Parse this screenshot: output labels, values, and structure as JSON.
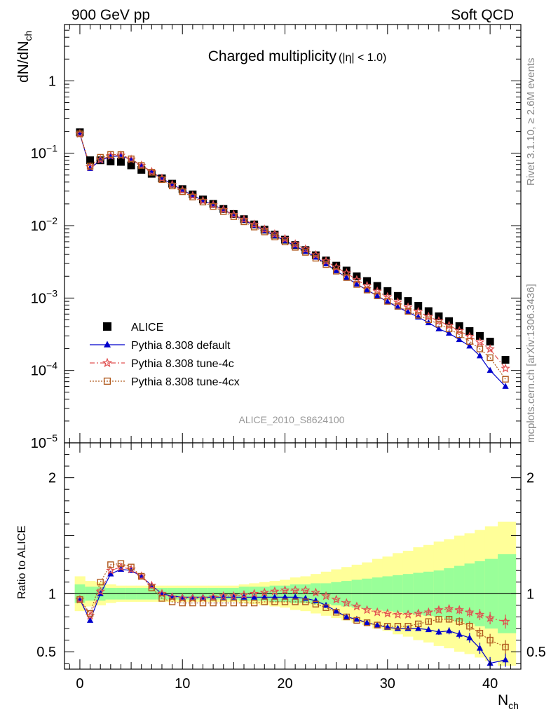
{
  "header": {
    "left": "900 GeV pp",
    "right": "Soft QCD"
  },
  "side_text": {
    "top": "Rivet 3.1.10, ≥ 2.6M events",
    "bottom": "mcplots.cern.ch [arXiv:1306.3436]"
  },
  "chart_data": {
    "type": "scatter",
    "title": "Charged multiplicity",
    "title_cut": "(|η| < 1.0)",
    "analysis_label": "ALICE_2010_S8624100",
    "xlabel": "N",
    "xlabel_sub": "ch",
    "ylabel": "dN/dN",
    "ylabel_sub": "ch",
    "ratio_ylabel": "Ratio to ALICE",
    "xlim": [
      -1.5,
      43
    ],
    "ylim": [
      1e-05,
      6
    ],
    "yscale": "log",
    "ratio_ylim": [
      0.35,
      2.3
    ],
    "x_ticks": [
      0,
      10,
      20,
      30,
      40
    ],
    "y_ticks": [
      {
        "value": 1,
        "base": "1",
        "exp": ""
      },
      {
        "value": 0.1,
        "base": "10",
        "exp": "−1"
      },
      {
        "value": 0.01,
        "base": "10",
        "exp": "−2"
      },
      {
        "value": 0.001,
        "base": "10",
        "exp": "−3"
      },
      {
        "value": 0.0001,
        "base": "10",
        "exp": "−4"
      },
      {
        "value": 1e-05,
        "base": "10",
        "exp": "−5"
      }
    ],
    "ratio_ticks": [
      {
        "value": 2,
        "label": "2"
      },
      {
        "value": 1,
        "label": "1"
      },
      {
        "value": 0.5,
        "label": "0.5"
      }
    ],
    "legend_position": "lower-left",
    "x": [
      0,
      1,
      2,
      3,
      4,
      5,
      6,
      7,
      8,
      9,
      10,
      11,
      12,
      13,
      14,
      15,
      16,
      17,
      18,
      19,
      20,
      21,
      22,
      23,
      24,
      25,
      26,
      27,
      28,
      29,
      30,
      31,
      32,
      33,
      34,
      35,
      36,
      37,
      38,
      39,
      40,
      41.5
    ],
    "alice": {
      "name": "ALICE",
      "color": "#000000",
      "values": [
        0.195,
        0.08,
        0.08,
        0.077,
        0.076,
        0.068,
        0.059,
        0.052,
        0.045,
        0.038,
        0.032,
        0.027,
        0.023,
        0.02,
        0.017,
        0.0145,
        0.0123,
        0.0104,
        0.0088,
        0.0075,
        0.0064,
        0.0054,
        0.0046,
        0.0039,
        0.0033,
        0.0028,
        0.0024,
        0.002,
        0.00172,
        0.00147,
        0.00125,
        0.00107,
        0.00091,
        0.00078,
        0.00066,
        0.00056,
        0.00048,
        0.00041,
        0.00035,
        0.0003,
        0.00025,
        0.00014
      ],
      "band_inner": [
        0.08,
        0.06,
        0.06,
        0.05,
        0.05,
        0.05,
        0.05,
        0.05,
        0.05,
        0.05,
        0.05,
        0.05,
        0.05,
        0.05,
        0.05,
        0.05,
        0.06,
        0.06,
        0.06,
        0.07,
        0.07,
        0.08,
        0.08,
        0.09,
        0.09,
        0.1,
        0.11,
        0.12,
        0.13,
        0.14,
        0.15,
        0.16,
        0.17,
        0.18,
        0.19,
        0.2,
        0.22,
        0.24,
        0.26,
        0.28,
        0.3,
        0.34
      ],
      "band_outer": [
        0.15,
        0.11,
        0.1,
        0.08,
        0.07,
        0.07,
        0.07,
        0.07,
        0.07,
        0.07,
        0.07,
        0.07,
        0.07,
        0.07,
        0.07,
        0.07,
        0.08,
        0.09,
        0.1,
        0.11,
        0.12,
        0.14,
        0.15,
        0.17,
        0.19,
        0.21,
        0.23,
        0.25,
        0.27,
        0.3,
        0.32,
        0.35,
        0.37,
        0.4,
        0.42,
        0.45,
        0.47,
        0.5,
        0.52,
        0.55,
        0.58,
        0.62
      ]
    },
    "series": [
      {
        "name": "Pythia 8.308 default",
        "color": "#0000cc",
        "marker": "triangle",
        "dash": "",
        "ratio": [
          0.95,
          0.77,
          1.0,
          1.17,
          1.21,
          1.2,
          1.15,
          1.07,
          1.0,
          0.98,
          0.97,
          0.97,
          0.97,
          0.97,
          0.97,
          0.97,
          0.97,
          0.97,
          0.97,
          0.97,
          0.97,
          0.97,
          0.96,
          0.94,
          0.9,
          0.85,
          0.8,
          0.78,
          0.75,
          0.73,
          0.71,
          0.7,
          0.7,
          0.7,
          0.69,
          0.67,
          0.68,
          0.65,
          0.62,
          0.53,
          0.4,
          0.43
        ]
      },
      {
        "name": "Pythia 8.308 tune-4c",
        "color": "#e05050",
        "marker": "star",
        "dash": "7,3,2,3",
        "ratio": [
          0.95,
          0.81,
          1.02,
          1.2,
          1.23,
          1.21,
          1.15,
          1.07,
          1.0,
          0.97,
          0.96,
          0.96,
          0.96,
          0.97,
          0.98,
          0.98,
          0.99,
          1.0,
          1.01,
          1.02,
          1.03,
          1.03,
          1.03,
          1.01,
          0.98,
          0.95,
          0.92,
          0.89,
          0.86,
          0.84,
          0.83,
          0.82,
          0.82,
          0.83,
          0.84,
          0.86,
          0.87,
          0.86,
          0.84,
          0.82,
          0.79,
          0.76
        ]
      },
      {
        "name": "Pythia 8.308 tune-4cx",
        "color": "#b05a1e",
        "marker": "square-open",
        "dash": "2,2",
        "ratio": [
          0.95,
          0.83,
          1.1,
          1.25,
          1.26,
          1.23,
          1.15,
          1.05,
          0.96,
          0.93,
          0.92,
          0.92,
          0.92,
          0.92,
          0.92,
          0.92,
          0.92,
          0.92,
          0.93,
          0.93,
          0.93,
          0.93,
          0.93,
          0.91,
          0.88,
          0.84,
          0.8,
          0.77,
          0.75,
          0.73,
          0.72,
          0.72,
          0.72,
          0.74,
          0.76,
          0.78,
          0.78,
          0.76,
          0.72,
          0.66,
          0.6,
          0.54
        ]
      }
    ]
  }
}
